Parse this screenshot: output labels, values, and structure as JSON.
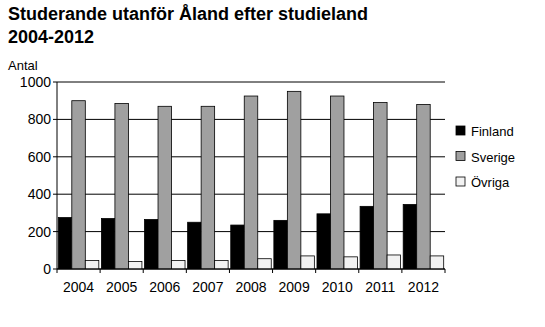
{
  "chart_data": {
    "type": "bar",
    "title": "Studerande utanför Åland efter studieland\n2004-2012",
    "y_label": "Antal",
    "categories": [
      "2004",
      "2005",
      "2006",
      "2007",
      "2008",
      "2009",
      "2010",
      "2011",
      "2012"
    ],
    "series": [
      {
        "name": "Finland",
        "color": "#000000",
        "values": [
          275,
          270,
          265,
          250,
          235,
          260,
          295,
          335,
          345
        ]
      },
      {
        "name": "Sverige",
        "color": "#a0a0a0",
        "values": [
          900,
          885,
          870,
          870,
          925,
          950,
          925,
          890,
          880
        ]
      },
      {
        "name": "Övriga",
        "color": "#f2f2f2",
        "values": [
          45,
          40,
          45,
          45,
          55,
          70,
          65,
          75,
          70
        ]
      }
    ],
    "ylim": [
      0,
      1000
    ],
    "yticks": [
      0,
      200,
      400,
      600,
      800,
      1000
    ],
    "grid": true,
    "legend": "right"
  }
}
